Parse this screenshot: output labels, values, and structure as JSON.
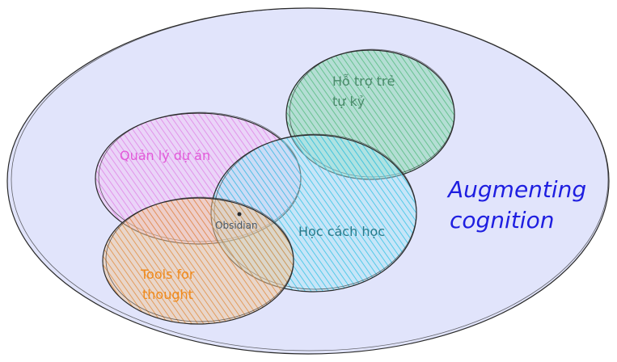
{
  "diagram": {
    "outer_label_line1": "Augmenting",
    "outer_label_line2": "cognition",
    "sets": {
      "support": {
        "line1": "Hỗ trợ trẻ",
        "line2": "tự kỷ",
        "color": "#5fbf8a"
      },
      "project": {
        "label": "Quản lý dự án",
        "color": "#e08ae8"
      },
      "learning": {
        "label": "Học cách học",
        "color": "#3fc6e6"
      },
      "tools": {
        "line1": "Tools for",
        "line2": "thought",
        "color": "#e08a3a"
      }
    },
    "center": {
      "label": "Obsidian"
    },
    "colors": {
      "outer_fill": "#e1e4fb",
      "outline": "#2a2a2a",
      "outer_text": "#1e1ee0",
      "support_text": "#4a8a6a",
      "project_text": "#e25ad8",
      "learning_text": "#2a7a8a",
      "tools_text": "#f08a1a",
      "center_text": "#4a5a6a"
    }
  }
}
